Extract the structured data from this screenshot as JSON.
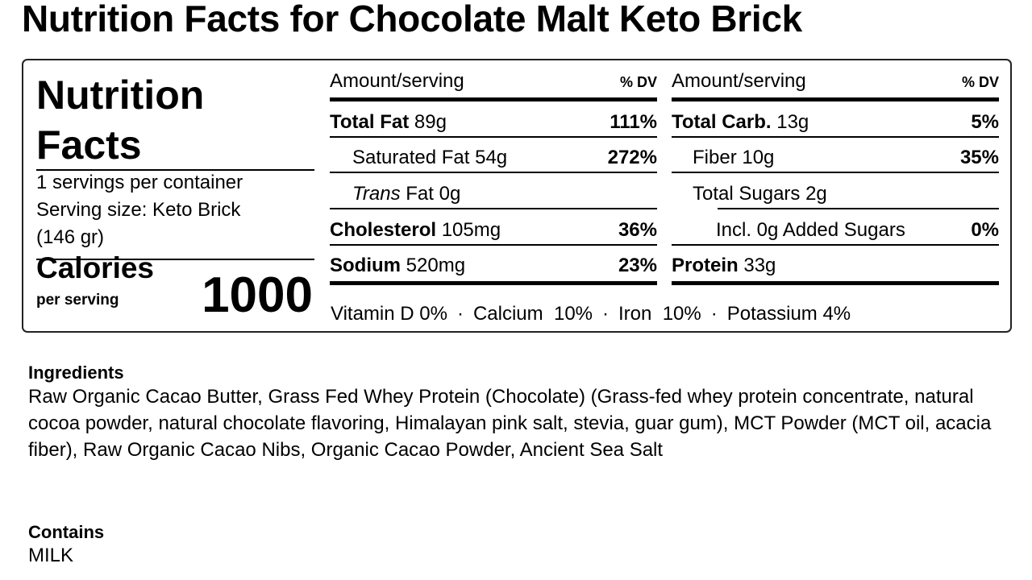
{
  "title": "Nutrition Facts for Chocolate Malt Keto Brick",
  "label": {
    "heading_line1": "Nutrition",
    "heading_line2": "Facts",
    "servings_per_container": "1 servings per container",
    "serving_size_line1": "Serving size: Keto Brick",
    "serving_size_line2": "(146 gr)",
    "calories_label": "Calories",
    "per_serving": "per serving",
    "calories_value": "1000",
    "left_table": {
      "header_amount": "Amount/serving",
      "header_dv": "% DV",
      "rows": [
        {
          "name": "Total Fat",
          "amount": "89g",
          "dv": "111%",
          "bold": true,
          "indent": 0
        },
        {
          "name": "Saturated Fat",
          "amount": "54g",
          "dv": "272%",
          "bold": false,
          "indent": 1
        },
        {
          "name_italic": "Trans",
          "name": "Fat",
          "amount": "0g",
          "dv": "",
          "bold": false,
          "indent": 1
        },
        {
          "name": "Cholesterol",
          "amount": "105mg",
          "dv": "36%",
          "bold": true,
          "indent": 0
        },
        {
          "name": "Sodium",
          "amount": "520mg",
          "dv": "23%",
          "bold": true,
          "indent": 0
        }
      ]
    },
    "right_table": {
      "header_amount": "Amount/serving",
      "header_dv": "% DV",
      "rows": [
        {
          "name": "Total Carb.",
          "amount": "13g",
          "dv": "5%",
          "bold": true,
          "indent": 0
        },
        {
          "name": "Fiber",
          "amount": "10g",
          "dv": "35%",
          "bold": false,
          "indent": 1
        },
        {
          "name": "Total Sugars",
          "amount": "2g",
          "dv": "",
          "bold": false,
          "indent": 1
        },
        {
          "name": "Incl. 0g Added Sugars",
          "amount": "",
          "dv": "0%",
          "bold": false,
          "indent": 2
        },
        {
          "name": "Protein",
          "amount": "33g",
          "dv": "",
          "bold": true,
          "indent": 0
        }
      ]
    },
    "vitamins": [
      {
        "text": "Vitamin D 0%"
      },
      {
        "text": "Calcium  10%"
      },
      {
        "text": "Iron  10%"
      },
      {
        "text": "Potassium 4%"
      }
    ],
    "vitamin_separator": "·"
  },
  "ingredients": {
    "heading": "Ingredients",
    "text": "Raw Organic Cacao Butter, Grass Fed Whey Protein (Chocolate) (Grass-fed whey protein concentrate, natural cocoa powder, natural chocolate flavoring, Himalayan pink salt, stevia, guar gum), MCT Powder (MCT oil, acacia fiber), Raw Organic Cacao Nibs, Organic Cacao Powder, Ancient Sea Salt"
  },
  "contains": {
    "heading": "Contains",
    "text": "MILK"
  }
}
